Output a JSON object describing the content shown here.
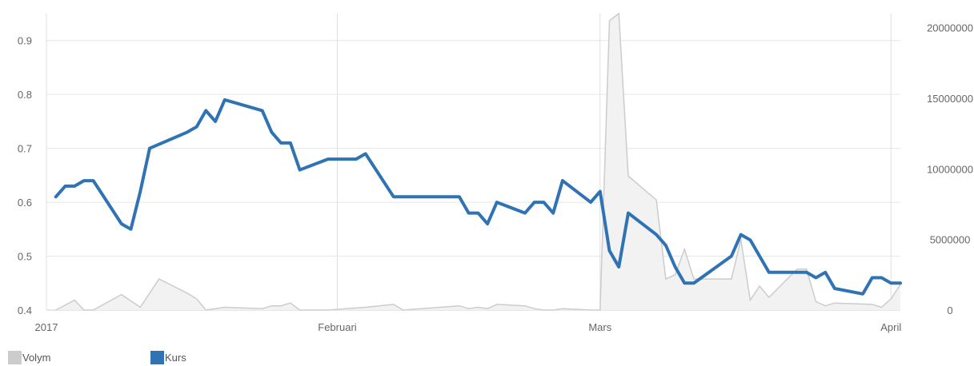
{
  "chart_data": {
    "type": "line",
    "x_dates": [
      "2017-01-02",
      "2017-01-03",
      "2017-01-04",
      "2017-01-05",
      "2017-01-06",
      "2017-01-09",
      "2017-01-10",
      "2017-01-11",
      "2017-01-12",
      "2017-01-13",
      "2017-01-16",
      "2017-01-17",
      "2017-01-18",
      "2017-01-19",
      "2017-01-20",
      "2017-01-23",
      "2017-01-24",
      "2017-01-25",
      "2017-01-26",
      "2017-01-27",
      "2017-01-30",
      "2017-01-31",
      "2017-02-01",
      "2017-02-02",
      "2017-02-03",
      "2017-02-06",
      "2017-02-07",
      "2017-02-08",
      "2017-02-09",
      "2017-02-10",
      "2017-02-13",
      "2017-02-14",
      "2017-02-15",
      "2017-02-16",
      "2017-02-17",
      "2017-02-20",
      "2017-02-21",
      "2017-02-22",
      "2017-02-23",
      "2017-02-24",
      "2017-02-27",
      "2017-02-28",
      "2017-03-01",
      "2017-03-02",
      "2017-03-03",
      "2017-03-06",
      "2017-03-07",
      "2017-03-08",
      "2017-03-09",
      "2017-03-10",
      "2017-03-13",
      "2017-03-14",
      "2017-03-15",
      "2017-03-16",
      "2017-03-17",
      "2017-03-20",
      "2017-03-21",
      "2017-03-22",
      "2017-03-23",
      "2017-03-24",
      "2017-03-27",
      "2017-03-28",
      "2017-03-29",
      "2017-03-30",
      "2017-03-31"
    ],
    "kurs_daily": [
      0.61,
      0.63,
      0.63,
      0.64,
      0.64,
      0.56,
      0.55,
      0.62,
      0.7,
      0.74,
      0.77,
      0.75,
      0.79,
      0.78,
      0.77,
      0.73,
      0.71,
      0.71,
      0.66,
      0.67,
      0.68,
      0.68,
      0.68,
      0.69,
      0.61,
      0.61,
      0.61,
      0.61,
      0.61,
      0.61,
      0.58,
      0.58,
      0.56,
      0.6,
      0.59,
      0.58,
      0.6,
      0.6,
      0.58,
      0.64,
      0.62,
      0.6,
      0.62,
      0.51,
      0.48,
      0.58,
      0.54,
      0.52,
      0.48,
      0.45,
      0.45,
      0.48,
      0.51,
      0.54,
      0.53,
      0.47,
      0.47,
      0.47,
      0.47,
      0.46,
      0.47,
      0.44,
      0.43,
      0.46,
      0.45
    ],
    "kurs_chartpoints": [
      [
        "2017-01-02",
        0.61
      ],
      [
        "2017-01-03",
        0.63
      ],
      [
        "2017-01-04",
        0.63
      ],
      [
        "2017-01-05",
        0.64
      ],
      [
        "2017-01-06",
        0.64
      ],
      [
        "2017-01-09",
        0.56
      ],
      [
        "2017-01-10",
        0.55
      ],
      [
        "2017-01-11",
        0.62
      ],
      [
        "2017-01-12",
        0.7
      ],
      [
        "2017-01-16",
        0.73
      ],
      [
        "2017-01-17",
        0.74
      ],
      [
        "2017-01-18",
        0.77
      ],
      [
        "2017-01-19",
        0.75
      ],
      [
        "2017-01-20",
        0.79
      ],
      [
        "2017-01-24",
        0.77
      ],
      [
        "2017-01-25",
        0.73
      ],
      [
        "2017-01-26",
        0.71
      ],
      [
        "2017-01-27",
        0.71
      ],
      [
        "2017-01-28",
        0.66
      ],
      [
        "2017-01-31",
        0.68
      ],
      [
        "2017-02-03",
        0.68
      ],
      [
        "2017-02-04",
        0.69
      ],
      [
        "2017-02-07",
        0.61
      ],
      [
        "2017-02-14",
        0.61
      ],
      [
        "2017-02-15",
        0.58
      ],
      [
        "2017-02-16",
        0.58
      ],
      [
        "2017-02-17",
        0.56
      ],
      [
        "2017-02-18",
        0.6
      ],
      [
        "2017-02-21",
        0.58
      ],
      [
        "2017-02-22",
        0.6
      ],
      [
        "2017-02-23",
        0.6
      ],
      [
        "2017-02-24",
        0.58
      ],
      [
        "2017-02-25",
        0.64
      ],
      [
        "2017-02-28",
        0.6
      ],
      [
        "2017-03-01",
        0.62
      ],
      [
        "2017-03-02",
        0.51
      ],
      [
        "2017-03-03",
        0.48
      ],
      [
        "2017-03-04",
        0.58
      ],
      [
        "2017-03-07",
        0.54
      ],
      [
        "2017-03-08",
        0.52
      ],
      [
        "2017-03-09",
        0.48
      ],
      [
        "2017-03-10",
        0.45
      ],
      [
        "2017-03-11",
        0.45
      ],
      [
        "2017-03-15",
        0.5
      ],
      [
        "2017-03-16",
        0.54
      ],
      [
        "2017-03-17",
        0.53
      ],
      [
        "2017-03-19",
        0.47
      ],
      [
        "2017-03-23",
        0.47
      ],
      [
        "2017-03-24",
        0.46
      ],
      [
        "2017-03-25",
        0.47
      ],
      [
        "2017-03-26",
        0.44
      ],
      [
        "2017-03-29",
        0.43
      ],
      [
        "2017-03-30",
        0.46
      ],
      [
        "2017-03-31",
        0.46
      ],
      [
        "2017-04-01",
        0.45
      ],
      [
        "2017-04-02",
        0.45
      ]
    ],
    "volym_chartpoints": [
      [
        "2017-01-02",
        0
      ],
      [
        "2017-01-04",
        700000
      ],
      [
        "2017-01-05",
        0
      ],
      [
        "2017-01-06",
        0
      ],
      [
        "2017-01-09",
        1100000
      ],
      [
        "2017-01-11",
        200000
      ],
      [
        "2017-01-13",
        2200000
      ],
      [
        "2017-01-16",
        1200000
      ],
      [
        "2017-01-17",
        800000
      ],
      [
        "2017-01-18",
        0
      ],
      [
        "2017-01-19",
        100000
      ],
      [
        "2017-01-20",
        200000
      ],
      [
        "2017-01-24",
        100000
      ],
      [
        "2017-01-25",
        300000
      ],
      [
        "2017-01-26",
        300000
      ],
      [
        "2017-01-27",
        500000
      ],
      [
        "2017-01-28",
        0
      ],
      [
        "2017-01-31",
        0
      ],
      [
        "2017-02-02",
        100000
      ],
      [
        "2017-02-04",
        200000
      ],
      [
        "2017-02-07",
        400000
      ],
      [
        "2017-02-08",
        0
      ],
      [
        "2017-02-14",
        300000
      ],
      [
        "2017-02-15",
        100000
      ],
      [
        "2017-02-16",
        200000
      ],
      [
        "2017-02-17",
        100000
      ],
      [
        "2017-02-18",
        400000
      ],
      [
        "2017-02-21",
        300000
      ],
      [
        "2017-02-22",
        100000
      ],
      [
        "2017-02-23",
        0
      ],
      [
        "2017-02-24",
        0
      ],
      [
        "2017-02-25",
        100000
      ],
      [
        "2017-02-28",
        0
      ],
      [
        "2017-03-01",
        0
      ],
      [
        "2017-03-02",
        20500000
      ],
      [
        "2017-03-03",
        21000000
      ],
      [
        "2017-03-04",
        9500000
      ],
      [
        "2017-03-07",
        7800000
      ],
      [
        "2017-03-08",
        2200000
      ],
      [
        "2017-03-09",
        2500000
      ],
      [
        "2017-03-10",
        4300000
      ],
      [
        "2017-03-11",
        2200000
      ],
      [
        "2017-03-15",
        2200000
      ],
      [
        "2017-03-16",
        5000000
      ],
      [
        "2017-03-17",
        700000
      ],
      [
        "2017-03-18",
        1700000
      ],
      [
        "2017-03-19",
        900000
      ],
      [
        "2017-03-22",
        2900000
      ],
      [
        "2017-03-23",
        2900000
      ],
      [
        "2017-03-24",
        600000
      ],
      [
        "2017-03-25",
        300000
      ],
      [
        "2017-03-26",
        500000
      ],
      [
        "2017-03-30",
        400000
      ],
      [
        "2017-03-31",
        200000
      ],
      [
        "2017-04-01",
        800000
      ],
      [
        "2017-04-02",
        1800000
      ]
    ],
    "x_ticks": [
      "2017",
      "Februari",
      "Mars",
      "April"
    ],
    "x_tick_dates": [
      "2017-01-01",
      "2017-02-01",
      "2017-03-01",
      "2017-04-01"
    ],
    "y_left": {
      "ticks": [
        "0.4",
        "0.5",
        "0.6",
        "0.7",
        "0.8",
        "0.9"
      ],
      "range": [
        0.4,
        0.95
      ]
    },
    "y_right": {
      "ticks": [
        "0",
        "5000000",
        "10000000",
        "15000000",
        "20000000"
      ],
      "range": [
        0,
        21000000
      ]
    },
    "legend": [
      {
        "name": "Volym",
        "color": "#cccccc"
      },
      {
        "name": "Kurs",
        "color": "#2f73b5"
      }
    ],
    "legend_position": "bottom-left",
    "grid": true
  }
}
